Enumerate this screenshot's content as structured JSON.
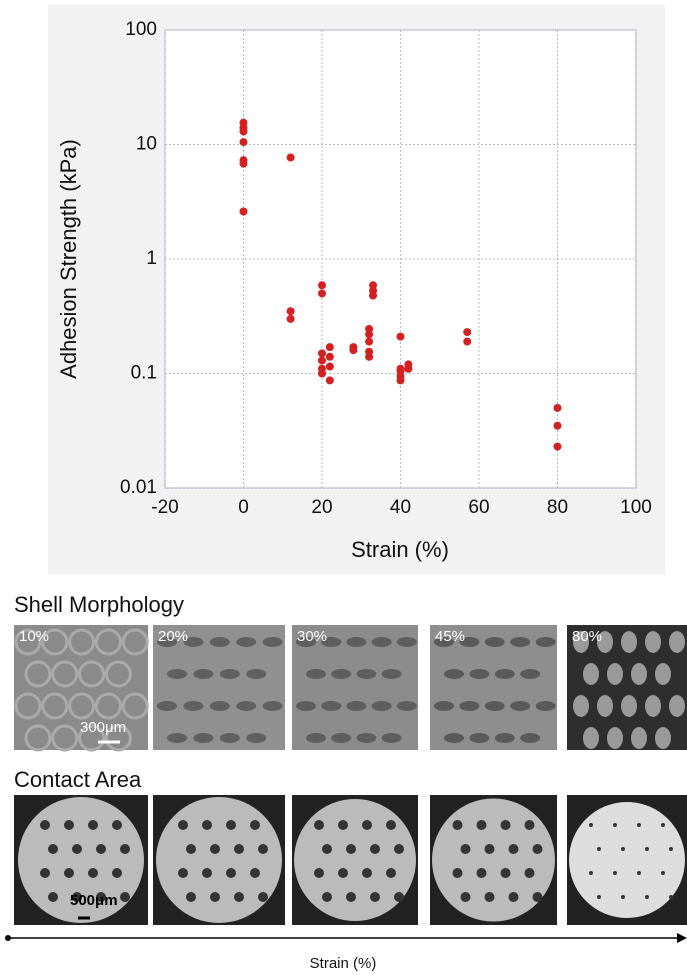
{
  "chart_data": {
    "type": "scatter",
    "xlabel": "Strain (%)",
    "ylabel": "Adhesion Strength (kPa)",
    "x": [
      0,
      0,
      0,
      0,
      0,
      0,
      0,
      12,
      12,
      12,
      20,
      20,
      20,
      20,
      20,
      20,
      22,
      22,
      22,
      22,
      28,
      28,
      32,
      32,
      32,
      32,
      32,
      33,
      33,
      33,
      40,
      40,
      40,
      40,
      40,
      42,
      42,
      57,
      57,
      80,
      80,
      80
    ],
    "values": [
      15.5,
      14,
      13,
      10.5,
      7.3,
      6.8,
      2.6,
      7.7,
      0.35,
      0.3,
      0.59,
      0.5,
      0.15,
      0.13,
      0.11,
      0.1,
      0.17,
      0.14,
      0.115,
      0.087,
      0.17,
      0.16,
      0.245,
      0.22,
      0.19,
      0.155,
      0.14,
      0.59,
      0.53,
      0.48,
      0.21,
      0.11,
      0.105,
      0.095,
      0.087,
      0.12,
      0.11,
      0.23,
      0.19,
      0.05,
      0.035,
      0.023
    ],
    "color": "#d42020",
    "xlim": [
      -20,
      100
    ],
    "xticks": [
      -20,
      0,
      20,
      40,
      60,
      80,
      100
    ],
    "ylim": [
      0.01,
      100
    ],
    "yticks": [
      0.01,
      0.1,
      1,
      10,
      100
    ],
    "ylog": true,
    "grid": true
  },
  "panels": {
    "shell_title": "Shell Morphology",
    "shell_labels": [
      "10%",
      "20%",
      "30%",
      "45%",
      "80%"
    ],
    "shell_scale": "300μm",
    "contact_title": "Contact Area",
    "contact_scale": "500μm",
    "axis_label": "Strain (%)"
  }
}
